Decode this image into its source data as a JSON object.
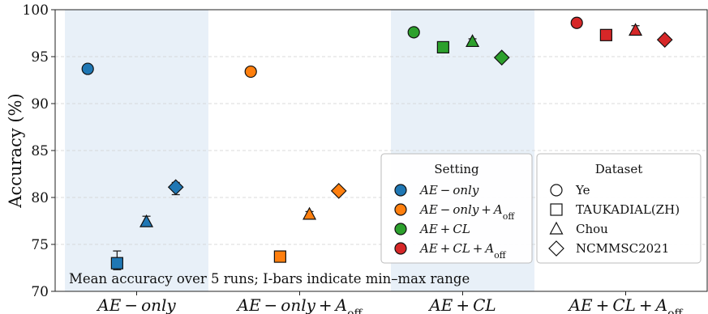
{
  "chart_data": {
    "type": "scatter",
    "ylabel": "Accuracy (%)",
    "ylim": [
      70,
      100
    ],
    "yticks": [
      70,
      75,
      80,
      85,
      90,
      95,
      100
    ],
    "grid": "horizontal dashed",
    "categories": [
      {
        "base": "AE − only",
        "sub": ""
      },
      {
        "base": "AE − only + A",
        "sub": "off"
      },
      {
        "base": "AE + CL",
        "sub": ""
      },
      {
        "base": "AE + CL + A",
        "sub": "off"
      }
    ],
    "shaded_categories": [
      0,
      2
    ],
    "datasets": [
      {
        "name": "Ye",
        "marker": "circle"
      },
      {
        "name": "TAUKADIAL(ZH)",
        "marker": "square"
      },
      {
        "name": "Chou",
        "marker": "triangle"
      },
      {
        "name": "NCMMSC2021",
        "marker": "diamond"
      }
    ],
    "settings": [
      {
        "base": "AE − only",
        "sub": "",
        "color": "#1f77b4"
      },
      {
        "base": "AE − only + A",
        "sub": "off",
        "color": "#ff7f0e"
      },
      {
        "base": "AE + CL",
        "sub": "",
        "color": "#2ca02c"
      },
      {
        "base": "AE + CL + A",
        "sub": "off",
        "color": "#d62728"
      }
    ],
    "points": [
      {
        "setting": 0,
        "dataset": 0,
        "y": 93.7,
        "min": 93.5,
        "max": 93.9
      },
      {
        "setting": 0,
        "dataset": 1,
        "y": 73.0,
        "min": 72.3,
        "max": 74.3
      },
      {
        "setting": 0,
        "dataset": 2,
        "y": 77.4,
        "min": 77.0,
        "max": 78.0
      },
      {
        "setting": 0,
        "dataset": 3,
        "y": 81.1,
        "min": 80.3,
        "max": 81.6
      },
      {
        "setting": 1,
        "dataset": 0,
        "y": 93.4,
        "min": 93.4,
        "max": 93.4
      },
      {
        "setting": 1,
        "dataset": 1,
        "y": 73.7,
        "min": 73.7,
        "max": 73.7
      },
      {
        "setting": 1,
        "dataset": 2,
        "y": 78.2,
        "min": 77.9,
        "max": 78.5
      },
      {
        "setting": 1,
        "dataset": 3,
        "y": 80.7,
        "min": 80.7,
        "max": 80.7
      },
      {
        "setting": 2,
        "dataset": 0,
        "y": 97.6,
        "min": 97.6,
        "max": 97.6
      },
      {
        "setting": 2,
        "dataset": 1,
        "y": 96.0,
        "min": 95.7,
        "max": 96.3
      },
      {
        "setting": 2,
        "dataset": 2,
        "y": 96.6,
        "min": 96.2,
        "max": 96.9
      },
      {
        "setting": 2,
        "dataset": 3,
        "y": 94.9,
        "min": 94.9,
        "max": 94.9
      },
      {
        "setting": 3,
        "dataset": 0,
        "y": 98.6,
        "min": 98.3,
        "max": 98.8
      },
      {
        "setting": 3,
        "dataset": 1,
        "y": 97.3,
        "min": 97.3,
        "max": 97.3
      },
      {
        "setting": 3,
        "dataset": 2,
        "y": 97.8,
        "min": 97.4,
        "max": 98.3
      },
      {
        "setting": 3,
        "dataset": 3,
        "y": 96.8,
        "min": 96.8,
        "max": 96.8
      }
    ],
    "legends": [
      {
        "title": "Setting",
        "kind": "setting"
      },
      {
        "title": "Dataset",
        "kind": "dataset"
      }
    ],
    "annotation": "Mean accuracy over 5 runs; I-bars indicate min–max range"
  }
}
